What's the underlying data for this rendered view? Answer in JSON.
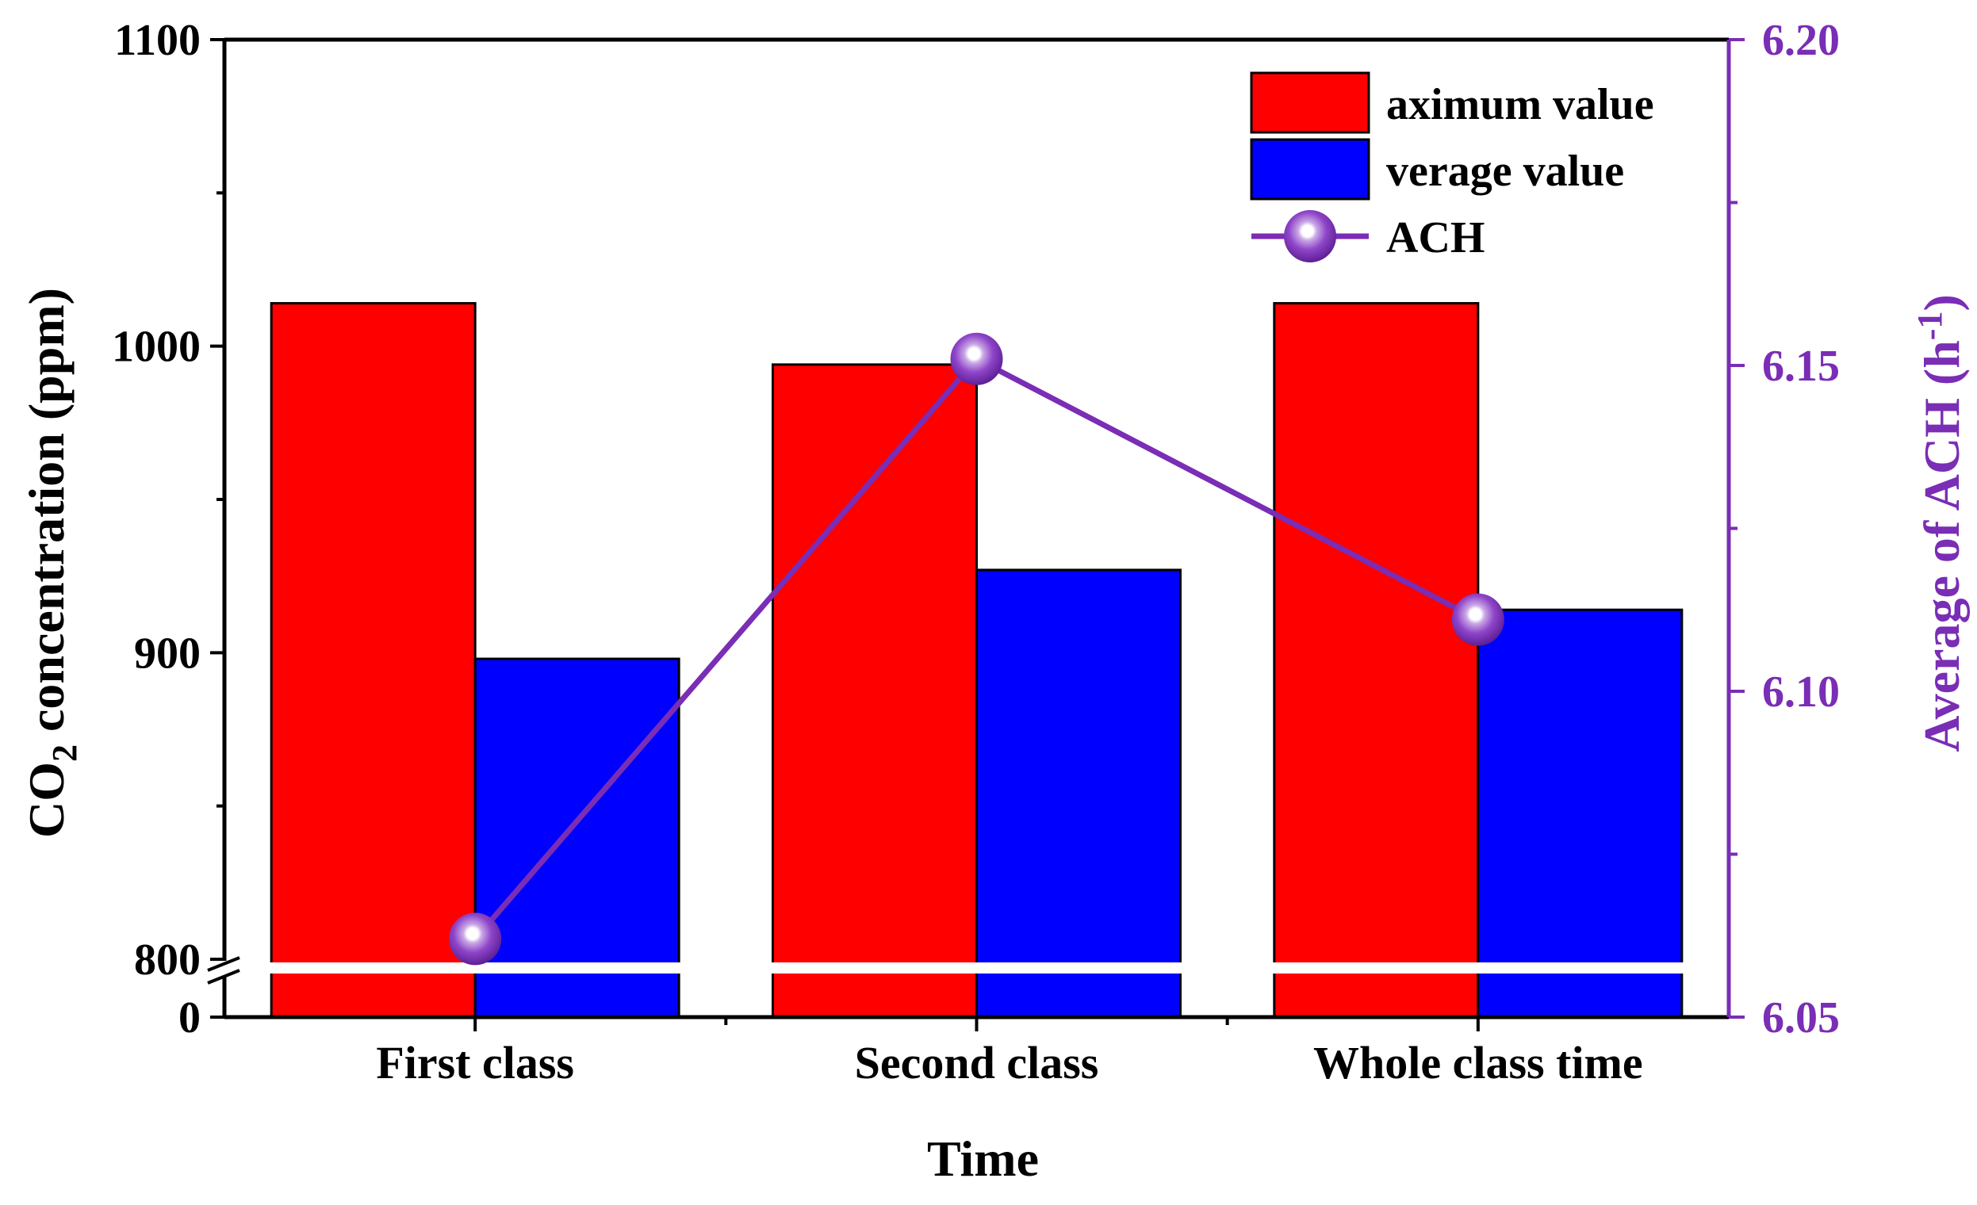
{
  "chart_data": {
    "type": "bar",
    "categories": [
      "First class",
      "Second class",
      "Whole class time"
    ],
    "series": [
      {
        "name": "aximum value",
        "kind": "bar",
        "axis": "left",
        "color": "#ff0000",
        "values": [
          1014,
          994,
          1014
        ]
      },
      {
        "name": "verage value",
        "kind": "bar",
        "axis": "left",
        "color": "#0000ff",
        "values": [
          898,
          927,
          914
        ]
      },
      {
        "name": "ACH",
        "kind": "line",
        "axis": "right",
        "color": "#7a2db5",
        "values": [
          6.062,
          6.151,
          6.111
        ]
      }
    ],
    "xlabel": "Time",
    "ylabel_main": "CO",
    "ylabel_sub": "2",
    "ylabel_rest": " concentration (ppm)",
    "y2label_main": "Average of ACH (h",
    "y2label_sup": "-1",
    "y2label_end": ")",
    "ylim_upper": [
      800,
      1100
    ],
    "ylim_lower": [
      0,
      800
    ],
    "y_ticks": [
      {
        "value": 1100,
        "label": "1100"
      },
      {
        "value": 1000,
        "label": "1000"
      },
      {
        "value": 900,
        "label": "900"
      },
      {
        "value": 800,
        "label": "800"
      },
      {
        "value": 0,
        "label": "0"
      }
    ],
    "y2lim": [
      6.05,
      6.2
    ],
    "y2_ticks": [
      "6.05",
      "6.10",
      "6.15",
      "6.20"
    ],
    "axis_break": "800",
    "legend_position": "top-right"
  }
}
